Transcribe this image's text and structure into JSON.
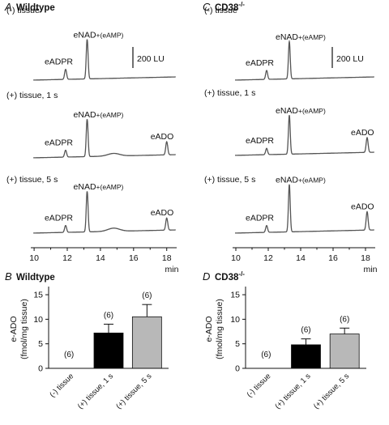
{
  "panels": {
    "A": {
      "letter": "A",
      "title": "Wildtype"
    },
    "B": {
      "letter": "B",
      "title": "Wildtype"
    },
    "C": {
      "letter": "C",
      "title": "CD38",
      "sup": "-/-"
    },
    "D": {
      "letter": "D",
      "title": "CD38",
      "sup": "-/-"
    }
  },
  "scale_bar_label": "200 LU",
  "chart_data": [
    {
      "panel": "A",
      "type": "line",
      "title": "Wildtype",
      "xlabel": "min",
      "xlim": [
        9.8,
        18.6
      ],
      "xticks": [
        10,
        12,
        14,
        16,
        18
      ],
      "traces": [
        {
          "condition": "(-) tissue",
          "baseline": 0,
          "peaks": [
            {
              "name": "eADPR",
              "x": 11.9,
              "height": 95
            },
            {
              "name": "eNAD",
              "sub": "+(eAMP)",
              "x": 13.2,
              "height": 375
            }
          ]
        },
        {
          "condition": "(+) tissue, 1 s",
          "peaks": [
            {
              "name": "eADPR",
              "x": 11.9,
              "height": 65
            },
            {
              "name": "eNAD",
              "sub": "+(eAMP)",
              "x": 13.2,
              "height": 355
            },
            {
              "name": "",
              "x": 14.8,
              "height": 25
            },
            {
              "name": "eADO",
              "x": 18.0,
              "height": 125
            }
          ]
        },
        {
          "condition": "(+) tissue, 5 s",
          "peaks": [
            {
              "name": "eADPR",
              "x": 11.9,
              "height": 65
            },
            {
              "name": "eNAD",
              "sub": "+(eAMP)",
              "x": 13.2,
              "height": 385
            },
            {
              "name": "",
              "x": 14.8,
              "height": 30
            },
            {
              "name": "eADO",
              "x": 18.0,
              "height": 115
            }
          ]
        }
      ]
    },
    {
      "panel": "C",
      "type": "line",
      "title": "CD38-/-",
      "xlabel": "min",
      "xlim": [
        9.8,
        18.6
      ],
      "xticks": [
        10,
        12,
        14,
        16,
        18
      ],
      "traces": [
        {
          "condition": "(-) tissue",
          "peaks": [
            {
              "name": "eADPR",
              "x": 11.9,
              "height": 85
            },
            {
              "name": "eNAD",
              "sub": "+(eAMP)",
              "x": 13.3,
              "height": 355
            }
          ]
        },
        {
          "condition": "(+) tissue, 1 s",
          "peaks": [
            {
              "name": "eADPR",
              "x": 11.9,
              "height": 60
            },
            {
              "name": "eNAD",
              "sub": "+(eAMP)",
              "x": 13.3,
              "height": 370
            },
            {
              "name": "eADO",
              "x": 18.1,
              "height": 140
            }
          ]
        },
        {
          "condition": "(+) tissue, 5 s",
          "peaks": [
            {
              "name": "eADPR",
              "x": 11.9,
              "height": 65
            },
            {
              "name": "eNAD",
              "sub": "+(eAMP)",
              "x": 13.3,
              "height": 450
            },
            {
              "name": "eADO",
              "x": 18.1,
              "height": 175
            }
          ]
        }
      ]
    },
    {
      "panel": "B",
      "type": "bar",
      "title": "Wildtype",
      "ylabel": "e-ADO",
      "ylabel2": "(fmol/mg tissue)",
      "ylim": [
        0,
        16
      ],
      "yticks": [
        0,
        5,
        10,
        15
      ],
      "categories": [
        "(-) tissue",
        "(+) tissue, 1 s",
        "(+) tissue, 5 s"
      ],
      "values": [
        0,
        7.2,
        10.5
      ],
      "errors": [
        0,
        1.8,
        2.5
      ],
      "n_labels": [
        "(6)",
        "(6)",
        "(6)"
      ],
      "colors": [
        "#ffffff",
        "#000000",
        "#b8b8b8"
      ]
    },
    {
      "panel": "D",
      "type": "bar",
      "title": "CD38-/-",
      "ylabel": "e-ADO",
      "ylabel2": "(fmol/mg tissue)",
      "ylim": [
        0,
        16
      ],
      "yticks": [
        0,
        5,
        10,
        15
      ],
      "categories": [
        "(-) tissue",
        "(+) tissue, 1 s",
        "(+) tissue, 5 s"
      ],
      "values": [
        0,
        4.8,
        7.0
      ],
      "errors": [
        0,
        1.2,
        1.2
      ],
      "n_labels": [
        "(6)",
        "(6)",
        "(6)"
      ],
      "colors": [
        "#ffffff",
        "#000000",
        "#b8b8b8"
      ]
    }
  ]
}
